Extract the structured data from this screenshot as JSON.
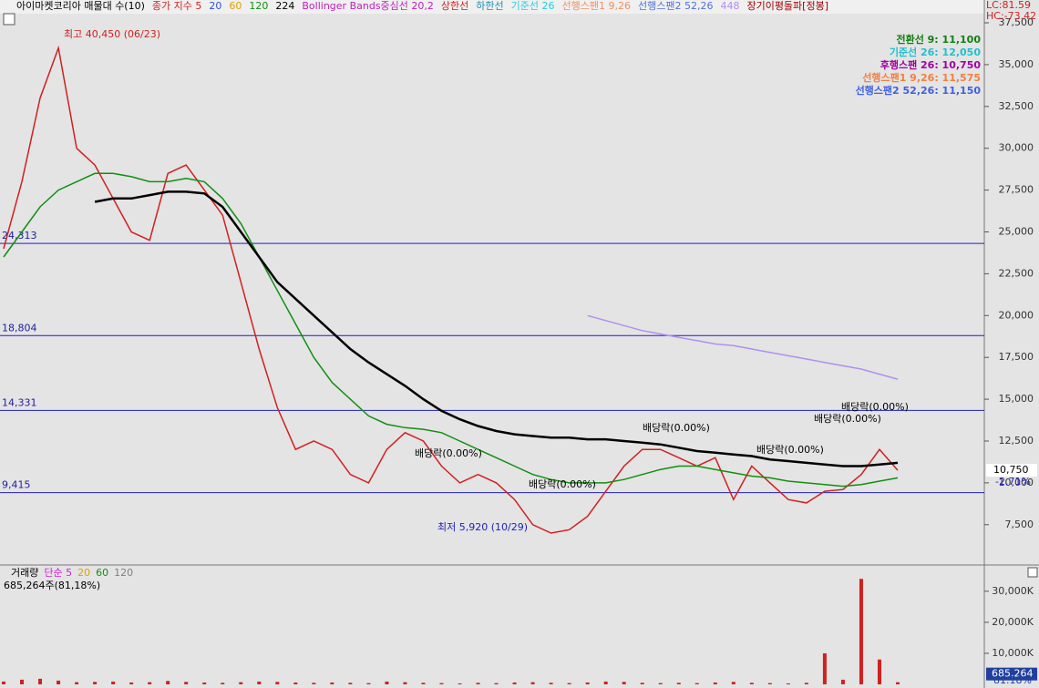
{
  "chart_data": [
    {
      "type": "line",
      "legend": [
        {
          "text": "아이마켓코리아 매물대 수(10)",
          "color": "#000000"
        },
        {
          "text": "종가 지수 5",
          "color": "#d02020"
        },
        {
          "text": "20",
          "color": "#3050e0"
        },
        {
          "text": "60",
          "color": "#e0a000"
        },
        {
          "text": "120",
          "color": "#109010"
        },
        {
          "text": "224",
          "color": "#000000"
        },
        {
          "text": "Bollinger Bands중심선 20,2",
          "color": "#c020c0"
        },
        {
          "text": "상한선",
          "color": "#d02020"
        },
        {
          "text": "하한선",
          "color": "#2090b0"
        },
        {
          "text": "기준선 26",
          "color": "#20d0e0"
        },
        {
          "text": "선행스팬1 9,26",
          "color": "#f09060"
        },
        {
          "text": "선행스팬2 52,26",
          "color": "#5070e0"
        },
        {
          "text": "448",
          "color": "#b090f0"
        },
        {
          "text": "장기이평돌파[정봉]",
          "color": "#a00000"
        }
      ],
      "info": [
        {
          "text": "전환선 9: 11,100",
          "color": "#108010"
        },
        {
          "text": "기준선 26: 12,050",
          "color": "#20c0d0"
        },
        {
          "text": "후행스팬 26: 10,750",
          "color": "#a000a0"
        },
        {
          "text": "선행스팬1 9,26: 11,575",
          "color": "#f08040"
        },
        {
          "text": "선행스팬2 52,26: 11,150",
          "color": "#4060e0"
        }
      ],
      "side_labels": [
        "LC:81.59",
        "HC:-73.42"
      ],
      "last_price": {
        "value": 10750,
        "label": "10,750"
      },
      "change": "-2.71%",
      "annotations": [
        "최고 40,450 (06/23)",
        "최저 5,920 (10/29)",
        "배당락(0.00%)",
        "배당락(0.00%)",
        "배당락(0.00%)",
        "배당락(0.00%)",
        "배당락(0.00%)",
        "배당락(0.00%)"
      ],
      "levels": [
        {
          "value": 24313,
          "label": "24,313"
        },
        {
          "value": 18804,
          "label": "18,804"
        },
        {
          "value": 14331,
          "label": "14,331"
        },
        {
          "value": 9415,
          "label": "9,415"
        }
      ],
      "categories": [
        null,
        null,
        null,
        null,
        null,
        null,
        null,
        null,
        null,
        null,
        null,
        null,
        null,
        null,
        null,
        null,
        null,
        null,
        null,
        null,
        null,
        null,
        null,
        null,
        null,
        null,
        null,
        null,
        null,
        null,
        null,
        null,
        null,
        null,
        null,
        null,
        null,
        null,
        null,
        null,
        null,
        null,
        null,
        null,
        null,
        null,
        null,
        null,
        null,
        null
      ],
      "series": [
        {
          "color": "#d02020",
          "values": [
            24000,
            28000,
            33000,
            36000,
            30000,
            29000,
            27000,
            25000,
            24500,
            28500,
            29000,
            27500,
            26000,
            22000,
            18000,
            14500,
            12000,
            12500,
            12000,
            10500,
            10000,
            12000,
            13000,
            12500,
            11000,
            10000,
            10500,
            10000,
            9000,
            7500,
            7000,
            7200,
            8000,
            9500,
            11000,
            12000,
            12000,
            11500,
            11000,
            11500,
            9000,
            11000,
            10000,
            9000,
            8800,
            9500,
            9600,
            10500,
            12000,
            10750
          ]
        },
        {
          "color": "#109010",
          "values": [
            23500,
            25000,
            26500,
            27500,
            28000,
            28500,
            28500,
            28300,
            28000,
            28000,
            28200,
            28000,
            27000,
            25500,
            23500,
            21500,
            19500,
            17500,
            16000,
            15000,
            14000,
            13500,
            13300,
            13200,
            13000,
            12500,
            12000,
            11500,
            11000,
            10500,
            10200,
            10000,
            10000,
            10000,
            10200,
            10500,
            10800,
            11000,
            11000,
            10800,
            10600,
            10400,
            10300,
            10100,
            10000,
            9900,
            9800,
            9900,
            10100,
            10300
          ]
        },
        {
          "color": "#000000",
          "values": [
            null,
            null,
            null,
            null,
            null,
            26800,
            27000,
            27000,
            27200,
            27400,
            27400,
            27300,
            26500,
            25000,
            23500,
            22000,
            21000,
            20000,
            19000,
            18000,
            17200,
            16500,
            15800,
            15000,
            14300,
            13800,
            13400,
            13100,
            12900,
            12800,
            12700,
            12700,
            12600,
            12600,
            12500,
            12400,
            12300,
            12100,
            11900,
            11800,
            11700,
            11600,
            11400,
            11300,
            11200,
            11100,
            11000,
            11000,
            11100,
            11200
          ]
        },
        {
          "color": "#b090f0",
          "values": [
            null,
            null,
            null,
            null,
            null,
            null,
            null,
            null,
            null,
            null,
            null,
            null,
            null,
            null,
            null,
            null,
            null,
            null,
            null,
            null,
            null,
            null,
            null,
            null,
            null,
            null,
            null,
            null,
            null,
            null,
            null,
            null,
            20000,
            19700,
            19400,
            19100,
            18900,
            18700,
            18500,
            18300,
            18200,
            18000,
            17800,
            17600,
            17400,
            17200,
            17000,
            16800,
            16500,
            16200
          ]
        }
      ],
      "ylim": [
        5200,
        38700
      ],
      "yticks": [
        {
          "value": 7500,
          "label": "7,500"
        },
        {
          "value": 10000,
          "label": "10,000"
        },
        {
          "value": 12500,
          "label": "12,500"
        },
        {
          "value": 15000,
          "label": "15,000"
        },
        {
          "value": 17500,
          "label": "17,500"
        },
        {
          "value": 20000,
          "label": "20,000"
        },
        {
          "value": 22500,
          "label": "22,500"
        },
        {
          "value": 25000,
          "label": "25,000"
        },
        {
          "value": 27500,
          "label": "27,500"
        },
        {
          "value": 30000,
          "label": "30,000"
        },
        {
          "value": 32500,
          "label": "32,500"
        },
        {
          "value": 35000,
          "label": "35,000"
        },
        {
          "value": 37500,
          "label": "37,500"
        }
      ]
    },
    {
      "type": "bar",
      "legend": [
        {
          "text": "거래량",
          "color": "#000000"
        },
        {
          "text": "단순 5",
          "color": "#d020d0"
        },
        {
          "text": "20",
          "color": "#e0a000"
        },
        {
          "text": "60",
          "color": "#109010"
        },
        {
          "text": "120",
          "color": "#808080"
        }
      ],
      "volume_label": "685,264주(81,18%)",
      "last_volume": {
        "value": 685.264,
        "label": "685,264"
      },
      "last_ratio": "81.18%",
      "categories": [
        null,
        null,
        null,
        null,
        null,
        null,
        null,
        null,
        null,
        null,
        null,
        null,
        null,
        null,
        null,
        null,
        null,
        null,
        null,
        null,
        null,
        null,
        null,
        null,
        null,
        null,
        null,
        null,
        null,
        null,
        null,
        null,
        null,
        null,
        null,
        null,
        null,
        null,
        null,
        null,
        null,
        null,
        null,
        null,
        null,
        null,
        null,
        null,
        null,
        null
      ],
      "color": "#d02020",
      "values": [
        900,
        1500,
        1800,
        1200,
        700,
        800,
        900,
        600,
        700,
        1100,
        800,
        600,
        500,
        700,
        900,
        800,
        600,
        500,
        600,
        500,
        400,
        900,
        700,
        500,
        400,
        300,
        500,
        400,
        600,
        700,
        500,
        400,
        600,
        900,
        800,
        500,
        400,
        500,
        400,
        600,
        800,
        500,
        400,
        300,
        500,
        10000,
        1500,
        34000,
        8000,
        685.264
      ],
      "ylim": [
        0,
        37000
      ],
      "yticks": [
        {
          "value": 10000,
          "label": "10,000K"
        },
        {
          "value": 20000,
          "label": "20,000K"
        },
        {
          "value": 30000,
          "label": "30,000K"
        }
      ]
    }
  ]
}
